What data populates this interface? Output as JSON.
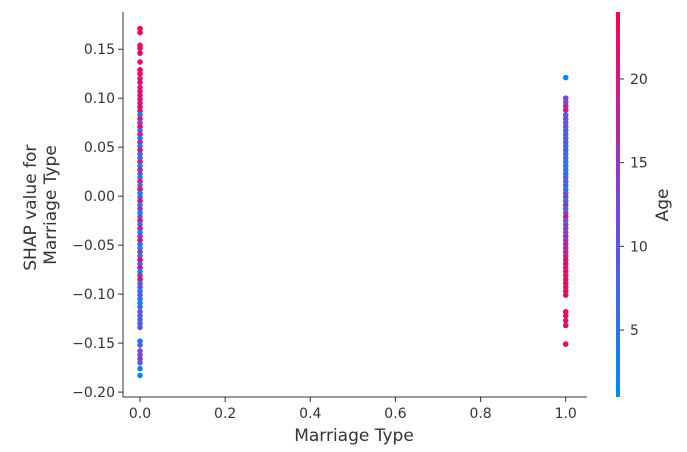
{
  "chart_data": {
    "type": "scatter",
    "title": "",
    "xlabel": "Marriage Type",
    "ylabel_lines": [
      "SHAP value for",
      "Marriage Type"
    ],
    "xlim": [
      -0.04,
      1.05
    ],
    "ylim": [
      -0.205,
      0.188
    ],
    "xticks": [
      0.0,
      0.2,
      0.4,
      0.6,
      0.8,
      1.0
    ],
    "xtick_labels": [
      "0.0",
      "0.2",
      "0.4",
      "0.6",
      "0.8",
      "1.0"
    ],
    "yticks": [
      -0.2,
      -0.15,
      -0.1,
      -0.05,
      0.0,
      0.05,
      0.1,
      0.15
    ],
    "ytick_labels": [
      "−0.20",
      "−0.15",
      "−0.10",
      "−0.05",
      "0.00",
      "0.05",
      "0.10",
      "0.15"
    ],
    "grid": false,
    "colorbar": {
      "label": "Age",
      "range": [
        1,
        24
      ],
      "ticks": [
        5,
        10,
        15,
        20
      ],
      "tick_labels": [
        "5",
        "10",
        "15",
        "20"
      ],
      "low_color": "#008bfb",
      "high_color": "#ff0052"
    },
    "points": [
      {
        "x": 0,
        "y": 0.171,
        "age": 23
      },
      {
        "x": 0,
        "y": 0.167,
        "age": 23
      },
      {
        "x": 0,
        "y": 0.154,
        "age": 22
      },
      {
        "x": 0,
        "y": 0.151,
        "age": 23
      },
      {
        "x": 0,
        "y": 0.146,
        "age": 22
      },
      {
        "x": 0,
        "y": 0.137,
        "age": 21
      },
      {
        "x": 0,
        "y": 0.129,
        "age": 22
      },
      {
        "x": 0,
        "y": 0.125,
        "age": 23
      },
      {
        "x": 0,
        "y": 0.12,
        "age": 21
      },
      {
        "x": 0,
        "y": 0.116,
        "age": 22
      },
      {
        "x": 0,
        "y": 0.111,
        "age": 20
      },
      {
        "x": 0,
        "y": 0.107,
        "age": 23
      },
      {
        "x": 0,
        "y": 0.103,
        "age": 21
      },
      {
        "x": 0,
        "y": 0.099,
        "age": 22
      },
      {
        "x": 0,
        "y": 0.095,
        "age": 20
      },
      {
        "x": 0,
        "y": 0.091,
        "age": 23
      },
      {
        "x": 0,
        "y": 0.087,
        "age": 19
      },
      {
        "x": 0,
        "y": 0.083,
        "age": 3
      },
      {
        "x": 0,
        "y": 0.079,
        "age": 21
      },
      {
        "x": 0,
        "y": 0.075,
        "age": 14
      },
      {
        "x": 0,
        "y": 0.071,
        "age": 22
      },
      {
        "x": 0,
        "y": 0.067,
        "age": 8
      },
      {
        "x": 0,
        "y": 0.063,
        "age": 20
      },
      {
        "x": 0,
        "y": 0.059,
        "age": 4
      },
      {
        "x": 0,
        "y": 0.055,
        "age": 17
      },
      {
        "x": 0,
        "y": 0.051,
        "age": 6
      },
      {
        "x": 0,
        "y": 0.047,
        "age": 21
      },
      {
        "x": 0,
        "y": 0.043,
        "age": 10
      },
      {
        "x": 0,
        "y": 0.039,
        "age": 5
      },
      {
        "x": 0,
        "y": 0.035,
        "age": 22
      },
      {
        "x": 0,
        "y": 0.031,
        "age": 3
      },
      {
        "x": 0,
        "y": 0.027,
        "age": 18
      },
      {
        "x": 0,
        "y": 0.023,
        "age": 12
      },
      {
        "x": 0,
        "y": 0.019,
        "age": 4
      },
      {
        "x": 0,
        "y": 0.015,
        "age": 20
      },
      {
        "x": 0,
        "y": 0.011,
        "age": 7
      },
      {
        "x": 0,
        "y": 0.007,
        "age": 23
      },
      {
        "x": 0,
        "y": 0.003,
        "age": 2
      },
      {
        "x": 0,
        "y": -0.001,
        "age": 9
      },
      {
        "x": 0,
        "y": -0.005,
        "age": 21
      },
      {
        "x": 0,
        "y": -0.009,
        "age": 5
      },
      {
        "x": 0,
        "y": -0.013,
        "age": 16
      },
      {
        "x": 0,
        "y": -0.017,
        "age": 3
      },
      {
        "x": 0,
        "y": -0.021,
        "age": 11
      },
      {
        "x": 0,
        "y": -0.025,
        "age": 22
      },
      {
        "x": 0,
        "y": -0.029,
        "age": 6
      },
      {
        "x": 0,
        "y": -0.033,
        "age": 19
      },
      {
        "x": 0,
        "y": -0.037,
        "age": 4
      },
      {
        "x": 0,
        "y": -0.041,
        "age": 13
      },
      {
        "x": 0,
        "y": -0.045,
        "age": 21
      },
      {
        "x": 0,
        "y": -0.049,
        "age": 8
      },
      {
        "x": 0,
        "y": -0.053,
        "age": 2
      },
      {
        "x": 0,
        "y": -0.057,
        "age": 17
      },
      {
        "x": 0,
        "y": -0.061,
        "age": 5
      },
      {
        "x": 0,
        "y": -0.065,
        "age": 23
      },
      {
        "x": 0,
        "y": -0.069,
        "age": 10
      },
      {
        "x": 0,
        "y": -0.073,
        "age": 20
      },
      {
        "x": 0,
        "y": -0.077,
        "age": 3
      },
      {
        "x": 0,
        "y": -0.081,
        "age": 15
      },
      {
        "x": 0,
        "y": -0.085,
        "age": 22
      },
      {
        "x": 0,
        "y": -0.089,
        "age": 7
      },
      {
        "x": 0,
        "y": -0.093,
        "age": 12
      },
      {
        "x": 0,
        "y": -0.097,
        "age": 4
      },
      {
        "x": 0,
        "y": -0.101,
        "age": 9
      },
      {
        "x": 0,
        "y": -0.105,
        "age": 6
      },
      {
        "x": 0,
        "y": -0.109,
        "age": 3
      },
      {
        "x": 0,
        "y": -0.113,
        "age": 5
      },
      {
        "x": 0,
        "y": -0.118,
        "age": 11
      },
      {
        "x": 0,
        "y": -0.122,
        "age": 8
      },
      {
        "x": 0,
        "y": -0.126,
        "age": 10
      },
      {
        "x": 0,
        "y": -0.13,
        "age": 7
      },
      {
        "x": 0,
        "y": -0.134,
        "age": 9
      },
      {
        "x": 0,
        "y": -0.148,
        "age": 4
      },
      {
        "x": 0,
        "y": -0.152,
        "age": 8
      },
      {
        "x": 0,
        "y": -0.158,
        "age": 13
      },
      {
        "x": 0,
        "y": -0.162,
        "age": 11
      },
      {
        "x": 0,
        "y": -0.166,
        "age": 16
      },
      {
        "x": 0,
        "y": -0.17,
        "age": 9
      },
      {
        "x": 0,
        "y": -0.176,
        "age": 3
      },
      {
        "x": 0,
        "y": -0.183,
        "age": 2
      },
      {
        "x": 1,
        "y": 0.121,
        "age": 2
      },
      {
        "x": 1,
        "y": 0.1,
        "age": 14
      },
      {
        "x": 1,
        "y": 0.096,
        "age": 11
      },
      {
        "x": 1,
        "y": 0.092,
        "age": 17
      },
      {
        "x": 1,
        "y": 0.088,
        "age": 20
      },
      {
        "x": 1,
        "y": 0.083,
        "age": 10
      },
      {
        "x": 1,
        "y": 0.079,
        "age": 13
      },
      {
        "x": 1,
        "y": 0.075,
        "age": 9
      },
      {
        "x": 1,
        "y": 0.071,
        "age": 12
      },
      {
        "x": 1,
        "y": 0.067,
        "age": 8
      },
      {
        "x": 1,
        "y": 0.063,
        "age": 11
      },
      {
        "x": 1,
        "y": 0.059,
        "age": 7
      },
      {
        "x": 1,
        "y": 0.055,
        "age": 10
      },
      {
        "x": 1,
        "y": 0.051,
        "age": 6
      },
      {
        "x": 1,
        "y": 0.047,
        "age": 9
      },
      {
        "x": 1,
        "y": 0.043,
        "age": 5
      },
      {
        "x": 1,
        "y": 0.039,
        "age": 8
      },
      {
        "x": 1,
        "y": 0.035,
        "age": 4
      },
      {
        "x": 1,
        "y": 0.031,
        "age": 7
      },
      {
        "x": 1,
        "y": 0.027,
        "age": 3
      },
      {
        "x": 1,
        "y": 0.023,
        "age": 6
      },
      {
        "x": 1,
        "y": 0.019,
        "age": 12
      },
      {
        "x": 1,
        "y": 0.015,
        "age": 4
      },
      {
        "x": 1,
        "y": 0.011,
        "age": 9
      },
      {
        "x": 1,
        "y": 0.007,
        "age": 3
      },
      {
        "x": 1,
        "y": 0.003,
        "age": 11
      },
      {
        "x": 1,
        "y": -0.001,
        "age": 14
      },
      {
        "x": 1,
        "y": -0.005,
        "age": 5
      },
      {
        "x": 1,
        "y": -0.009,
        "age": 16
      },
      {
        "x": 1,
        "y": -0.013,
        "age": 8
      },
      {
        "x": 1,
        "y": -0.017,
        "age": 12
      },
      {
        "x": 1,
        "y": -0.021,
        "age": 21
      },
      {
        "x": 1,
        "y": -0.025,
        "age": 10
      },
      {
        "x": 1,
        "y": -0.029,
        "age": 13
      },
      {
        "x": 1,
        "y": -0.033,
        "age": 15
      },
      {
        "x": 1,
        "y": -0.037,
        "age": 11
      },
      {
        "x": 1,
        "y": -0.041,
        "age": 17
      },
      {
        "x": 1,
        "y": -0.045,
        "age": 14
      },
      {
        "x": 1,
        "y": -0.049,
        "age": 19
      },
      {
        "x": 1,
        "y": -0.053,
        "age": 16
      },
      {
        "x": 1,
        "y": -0.057,
        "age": 20
      },
      {
        "x": 1,
        "y": -0.061,
        "age": 18
      },
      {
        "x": 1,
        "y": -0.065,
        "age": 21
      },
      {
        "x": 1,
        "y": -0.069,
        "age": 22
      },
      {
        "x": 1,
        "y": -0.073,
        "age": 20
      },
      {
        "x": 1,
        "y": -0.077,
        "age": 23
      },
      {
        "x": 1,
        "y": -0.081,
        "age": 21
      },
      {
        "x": 1,
        "y": -0.085,
        "age": 22
      },
      {
        "x": 1,
        "y": -0.089,
        "age": 23
      },
      {
        "x": 1,
        "y": -0.093,
        "age": 21
      },
      {
        "x": 1,
        "y": -0.097,
        "age": 22
      },
      {
        "x": 1,
        "y": -0.101,
        "age": 23
      },
      {
        "x": 1,
        "y": -0.118,
        "age": 22
      },
      {
        "x": 1,
        "y": -0.122,
        "age": 23
      },
      {
        "x": 1,
        "y": -0.127,
        "age": 21
      },
      {
        "x": 1,
        "y": -0.132,
        "age": 22
      },
      {
        "x": 1,
        "y": -0.151,
        "age": 23
      }
    ]
  }
}
